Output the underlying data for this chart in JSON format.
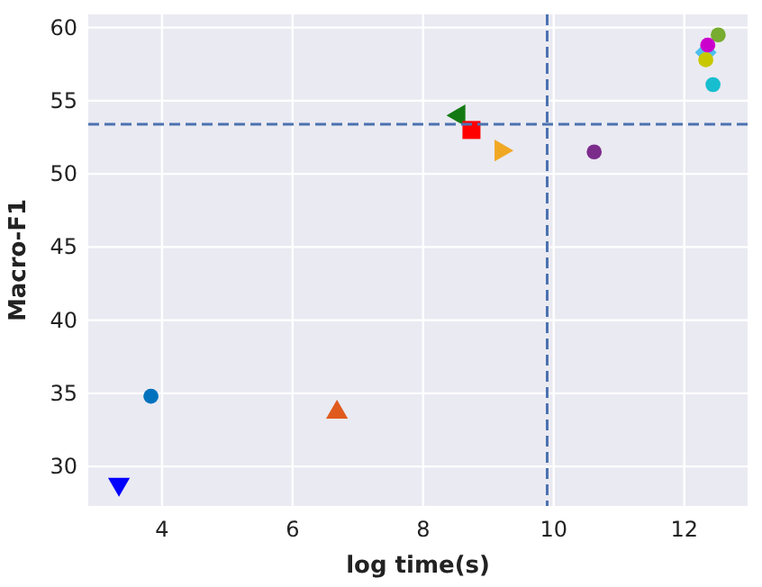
{
  "chart_data": {
    "type": "scatter",
    "xlabel": "log time(s)",
    "ylabel": "Macro-F1",
    "xlim": [
      2.87,
      12.97
    ],
    "ylim": [
      27.3,
      60.9
    ],
    "xticks": [
      4,
      6,
      8,
      10,
      12
    ],
    "yticks": [
      30,
      35,
      40,
      45,
      50,
      55,
      60
    ],
    "grid": true,
    "series": [
      {
        "color": "#0000ff",
        "marker": "triangle-down",
        "x": [
          3.34
        ],
        "values": [
          28.8
        ]
      },
      {
        "color": "#0072bd",
        "marker": "circle",
        "x": [
          3.83
        ],
        "values": [
          34.8
        ]
      },
      {
        "color": "#e05a1e",
        "marker": "triangle",
        "x": [
          6.68
        ],
        "values": [
          33.7
        ]
      },
      {
        "color": "#137a13",
        "marker": "triangle-left",
        "x": [
          8.55
        ],
        "values": [
          54.0
        ]
      },
      {
        "color": "#ff0000",
        "marker": "square",
        "x": [
          8.74
        ],
        "values": [
          53.0
        ]
      },
      {
        "color": "#f0a824",
        "marker": "triangle-right",
        "x": [
          9.19
        ],
        "values": [
          51.6
        ]
      },
      {
        "color": "#7b2c8b",
        "marker": "circle",
        "x": [
          10.62
        ],
        "values": [
          51.5
        ]
      },
      {
        "color": "#77ac30",
        "marker": "circle",
        "x": [
          12.52
        ],
        "values": [
          59.5
        ]
      },
      {
        "color": "#4dbeee",
        "marker": "diamond",
        "x": [
          12.33
        ],
        "values": [
          58.3
        ]
      },
      {
        "color": "#cc00cc",
        "marker": "circle",
        "x": [
          12.36
        ],
        "values": [
          58.8
        ]
      },
      {
        "color": "#c8c800",
        "marker": "circle",
        "x": [
          12.33
        ],
        "values": [
          57.8
        ]
      },
      {
        "color": "#17becf",
        "marker": "circle",
        "x": [
          12.44
        ],
        "values": [
          56.1
        ]
      }
    ],
    "ref_lines": [
      {
        "axis": "y",
        "value": 53.4,
        "color": "#4c72b0",
        "line_style": "dashed"
      },
      {
        "axis": "x",
        "value": 9.9,
        "color": "#4c72b0",
        "line_style": "dashed"
      }
    ]
  }
}
